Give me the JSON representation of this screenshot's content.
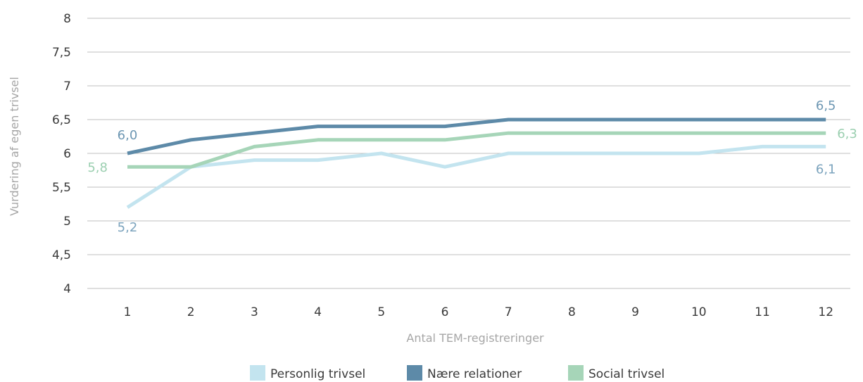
{
  "chart_data": {
    "type": "line",
    "xlabel": "Antal TEM-registreringer",
    "ylabel": "Vurdering af egen trivsel",
    "ylim": [
      4,
      8
    ],
    "y_ticks": [
      "4",
      "4,5",
      "5",
      "5,5",
      "6",
      "6,5",
      "7",
      "7,5",
      "8"
    ],
    "y_tick_values": [
      4,
      4.5,
      5,
      5.5,
      6,
      6.5,
      7,
      7.5,
      8
    ],
    "categories": [
      "1",
      "2",
      "3",
      "4",
      "5",
      "6",
      "7",
      "8",
      "9",
      "10",
      "11",
      "12"
    ],
    "grid": "horizontal",
    "legend_position": "bottom",
    "series": [
      {
        "name": "Personlig trivsel",
        "color": "#c3e4ef",
        "label_color": "#7ba3bd",
        "values": [
          5.2,
          5.8,
          5.9,
          5.9,
          6.0,
          5.8,
          6.0,
          6.0,
          6.0,
          6.0,
          6.1,
          6.1
        ],
        "start_label": "5,2",
        "end_label": "6,1"
      },
      {
        "name": "Nære relationer",
        "color": "#5d8aa8",
        "label_color": "#6d97b3",
        "values": [
          6.0,
          6.2,
          6.3,
          6.4,
          6.4,
          6.4,
          6.5,
          6.5,
          6.5,
          6.5,
          6.5,
          6.5
        ],
        "start_label": "6,0",
        "end_label": "6,5"
      },
      {
        "name": "Social trivsel",
        "color": "#a6d5b8",
        "label_color": "#9bcfb0",
        "values": [
          5.8,
          5.8,
          6.1,
          6.2,
          6.2,
          6.2,
          6.3,
          6.3,
          6.3,
          6.3,
          6.3,
          6.3
        ],
        "start_label": "5,8",
        "end_label": "6,3"
      }
    ]
  }
}
